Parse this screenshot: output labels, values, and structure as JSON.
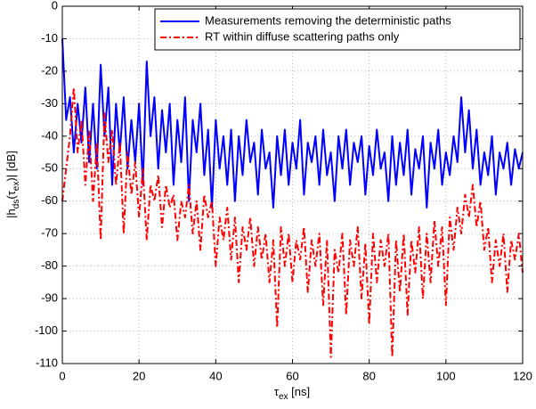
{
  "chart_data": {
    "type": "line",
    "x_label": [
      "τ",
      "ex",
      " [ns]"
    ],
    "y_label": [
      "|h",
      "ds",
      "(τ",
      "ex",
      ")| [dB]"
    ],
    "x": [
      0,
      1,
      2,
      3,
      4,
      5,
      6,
      7,
      8,
      9,
      10,
      11,
      12,
      13,
      14,
      15,
      16,
      17,
      18,
      19,
      20,
      21,
      22,
      23,
      24,
      25,
      26,
      27,
      28,
      29,
      30,
      31,
      32,
      33,
      34,
      35,
      36,
      37,
      38,
      39,
      40,
      41,
      42,
      43,
      44,
      45,
      46,
      47,
      48,
      49,
      50,
      51,
      52,
      53,
      54,
      55,
      56,
      57,
      58,
      59,
      60,
      61,
      62,
      63,
      64,
      65,
      66,
      67,
      68,
      69,
      70,
      71,
      72,
      73,
      74,
      75,
      76,
      77,
      78,
      79,
      80,
      81,
      82,
      83,
      84,
      85,
      86,
      87,
      88,
      89,
      90,
      91,
      92,
      93,
      94,
      95,
      96,
      97,
      98,
      99,
      100,
      101,
      102,
      103,
      104,
      105,
      106,
      107,
      108,
      109,
      110,
      111,
      112,
      113,
      114,
      115,
      116,
      117,
      118,
      119,
      120
    ],
    "series": [
      {
        "name": "Measurements removing the deterministic paths",
        "color": "#0000ff",
        "dash": "solid",
        "values": [
          -10,
          -35,
          -28,
          -45,
          -30,
          -42,
          -25,
          -48,
          -30,
          -50,
          -18,
          -40,
          -25,
          -55,
          -30,
          -45,
          -28,
          -50,
          -35,
          -48,
          -30,
          -55,
          -17,
          -40,
          -28,
          -50,
          -32,
          -45,
          -30,
          -55,
          -35,
          -48,
          -28,
          -60,
          -35,
          -45,
          -30,
          -52,
          -38,
          -62,
          -35,
          -50,
          -40,
          -55,
          -38,
          -60,
          -40,
          -52,
          -35,
          -48,
          -42,
          -58,
          -38,
          -50,
          -45,
          -62,
          -40,
          -52,
          -38,
          -55,
          -42,
          -50,
          -35,
          -58,
          -42,
          -48,
          -40,
          -55,
          -38,
          -52,
          -45,
          -60,
          -40,
          -50,
          -38,
          -55,
          -42,
          -48,
          -40,
          -58,
          -43,
          -52,
          -38,
          -50,
          -45,
          -60,
          -40,
          -55,
          -42,
          -52,
          -38,
          -58,
          -44,
          -50,
          -40,
          -62,
          -42,
          -50,
          -38,
          -55,
          -45,
          -52,
          -40,
          -48,
          -28,
          -45,
          -32,
          -50,
          -38,
          -55,
          -45,
          -52,
          -40,
          -58,
          -45,
          -50,
          -42,
          -55,
          -44,
          -50,
          -45
        ]
      },
      {
        "name": "RT within diffuse scattering paths only",
        "color": "#ff0000",
        "dash": "dashdot",
        "values": [
          -60,
          -50,
          -40,
          -25,
          -45,
          -35,
          -55,
          -38,
          -60,
          -42,
          -72,
          -33,
          -48,
          -38,
          -55,
          -42,
          -70,
          -45,
          -58,
          -48,
          -65,
          -50,
          -72,
          -55,
          -60,
          -52,
          -68,
          -55,
          -62,
          -58,
          -72,
          -60,
          -65,
          -55,
          -70,
          -60,
          -75,
          -58,
          -65,
          -60,
          -80,
          -65,
          -72,
          -62,
          -78,
          -65,
          -85,
          -68,
          -75,
          -65,
          -80,
          -68,
          -78,
          -70,
          -85,
          -72,
          -99,
          -68,
          -80,
          -70,
          -85,
          -72,
          -78,
          -68,
          -88,
          -72,
          -80,
          -70,
          -92,
          -72,
          -108,
          -75,
          -82,
          -70,
          -95,
          -72,
          -80,
          -68,
          -90,
          -73,
          -98,
          -70,
          -85,
          -72,
          -80,
          -70,
          -108,
          -72,
          -88,
          -70,
          -95,
          -72,
          -82,
          -68,
          -90,
          -70,
          -85,
          -66,
          -80,
          -68,
          -92,
          -65,
          -75,
          -62,
          -70,
          -58,
          -65,
          -55,
          -68,
          -60,
          -75,
          -68,
          -85,
          -72,
          -80,
          -70,
          -88,
          -72,
          -78,
          -70,
          -82
        ]
      }
    ],
    "xlim": [
      0,
      120
    ],
    "xticks": [
      0,
      20,
      40,
      60,
      80,
      100,
      120
    ],
    "ylim": [
      -110,
      0
    ],
    "yticks": [
      -110,
      -100,
      -90,
      -80,
      -70,
      -60,
      -50,
      -40,
      -30,
      -20,
      -10,
      0
    ],
    "grid": true,
    "legend": "upper-right"
  }
}
